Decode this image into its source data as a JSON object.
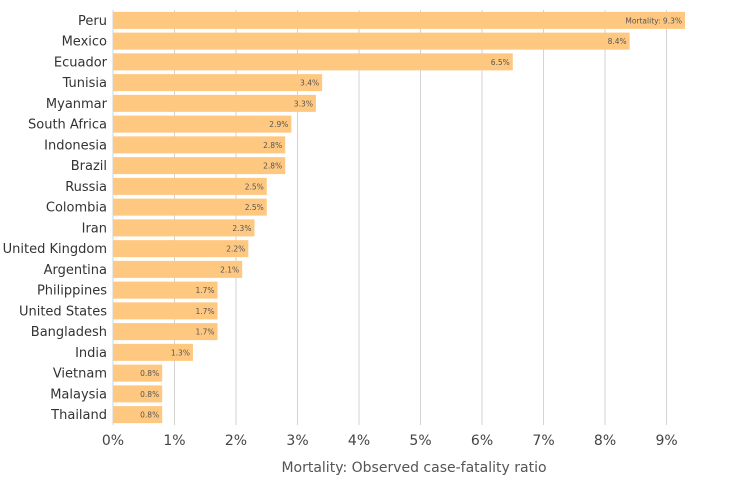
{
  "chart_data": {
    "type": "bar",
    "orientation": "horizontal",
    "categories": [
      "Peru",
      "Mexico",
      "Ecuador",
      "Tunisia",
      "Myanmar",
      "South Africa",
      "Indonesia",
      "Brazil",
      "Russia",
      "Colombia",
      "Iran",
      "United Kingdom",
      "Argentina",
      "Philippines",
      "United States",
      "Bangladesh",
      "India",
      "Vietnam",
      "Malaysia",
      "Thailand"
    ],
    "values": [
      9.3,
      8.4,
      6.5,
      3.4,
      3.3,
      2.9,
      2.8,
      2.8,
      2.5,
      2.5,
      2.3,
      2.2,
      2.1,
      1.7,
      1.7,
      1.7,
      1.3,
      0.8,
      0.8,
      0.8
    ],
    "data_labels": [
      "Mortality: 9.3%",
      "8.4%",
      "6.5%",
      "3.4%",
      "3.3%",
      "2.9%",
      "2.8%",
      "2.8%",
      "2.5%",
      "2.5%",
      "2.3%",
      "2.2%",
      "2.1%",
      "1.7%",
      "1.7%",
      "1.7%",
      "1.3%",
      "0.8%",
      "0.8%",
      "0.8%"
    ],
    "xlim": [
      0,
      9.3
    ],
    "xticks": [
      0,
      1,
      2,
      3,
      4,
      5,
      6,
      7,
      8,
      9
    ],
    "xtick_labels": [
      "0%",
      "1%",
      "2%",
      "3%",
      "4%",
      "5%",
      "6%",
      "7%",
      "8%",
      "9%"
    ],
    "xlabel": "Mortality: Observed case-fatality ratio",
    "ylabel": "",
    "title": "",
    "grid": true,
    "bar_color": "#ffc881",
    "grid_color": "#d3d3d3"
  }
}
